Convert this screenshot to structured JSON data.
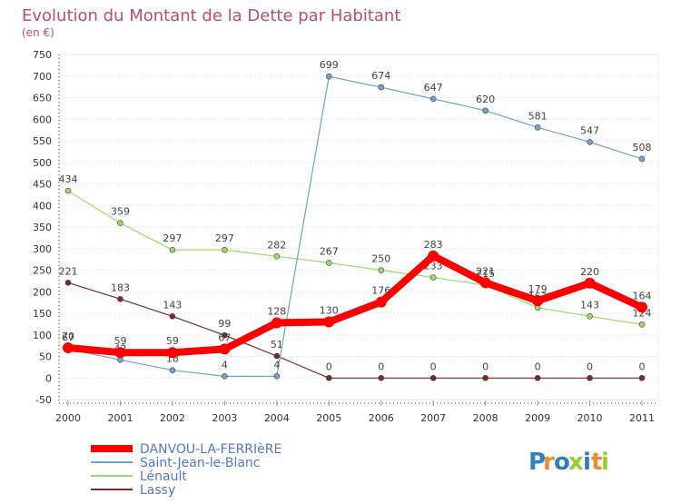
{
  "chart_data": {
    "type": "line",
    "title": "Evolution du Montant de la Dette par Habitant",
    "unit_label": "(en €)",
    "x": [
      "2000",
      "2001",
      "2002",
      "2003",
      "2004",
      "2005",
      "2006",
      "2007",
      "2008",
      "2009",
      "2010",
      "2011"
    ],
    "ylim": [
      -50,
      750
    ],
    "yticks": [
      -50,
      0,
      50,
      100,
      150,
      200,
      250,
      300,
      350,
      400,
      450,
      500,
      550,
      600,
      650,
      700,
      750
    ],
    "grid": "horizontal-dotted",
    "legend_position": "bottom-left",
    "series": [
      {
        "name": "DANVOU-LA-FERRIèRE",
        "color": "#ff0000",
        "values": [
          70,
          59,
          59,
          67,
          128,
          130,
          176,
          283,
          221,
          179,
          220,
          164
        ],
        "labels": [
          "70",
          "59",
          "59",
          "67",
          "128",
          "130",
          "176",
          "283",
          "221",
          "179",
          "220",
          "164"
        ]
      },
      {
        "name": "Saint-Jean-le-Blanc",
        "color": "#6ea3d2",
        "values": [
          67,
          42,
          18,
          4,
          4,
          699,
          674,
          647,
          620,
          581,
          547,
          508
        ],
        "labels": [
          "67",
          "42",
          "18",
          "4",
          "4",
          "699",
          "674",
          "647",
          "620",
          "581",
          "547",
          "508"
        ]
      },
      {
        "name": "Lénault",
        "color": "#99dd66",
        "values": [
          434,
          359,
          297,
          297,
          282,
          267,
          250,
          233,
          215,
          163,
          143,
          124
        ],
        "labels": [
          "434",
          "359",
          "297",
          "297",
          "282",
          "267",
          "250",
          "233",
          "215",
          "163",
          "143",
          "124"
        ]
      },
      {
        "name": "Lassy",
        "color": "#7a2a2a",
        "values": [
          221,
          183,
          143,
          99,
          51,
          0,
          0,
          0,
          0,
          0,
          0,
          0
        ],
        "labels": [
          "221",
          "183",
          "143",
          "99",
          "51",
          "0",
          "0",
          "0",
          "0",
          "0",
          "0",
          "0"
        ]
      }
    ]
  },
  "branding": {
    "logo_text": "Proxiti",
    "logo_letters": [
      "P",
      "r",
      "o",
      "x",
      "i",
      "t",
      "i"
    ]
  },
  "colors": {
    "title": "#c04a7a",
    "axis_red": "#cc0000",
    "grid": "#dddddd"
  }
}
